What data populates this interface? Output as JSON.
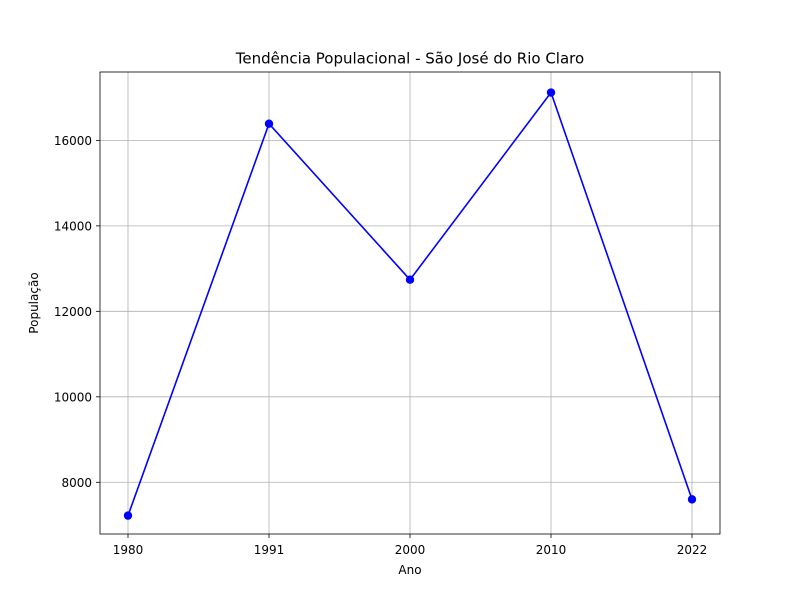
{
  "chart_data": {
    "type": "line",
    "title": "Tendência Populacional - São José do Rio Claro",
    "xlabel": "Ano",
    "ylabel": "População",
    "categories": [
      "1980",
      "1991",
      "2000",
      "2010",
      "2022"
    ],
    "series": [
      {
        "values": [
          7220,
          16390,
          12740,
          17120,
          7600
        ],
        "color": "#0000ff",
        "marker": "circle"
      }
    ],
    "ylim": [
      6790,
      17600
    ],
    "yticks": [
      "8000",
      "10000",
      "12000",
      "14000",
      "16000"
    ],
    "grid": true
  }
}
